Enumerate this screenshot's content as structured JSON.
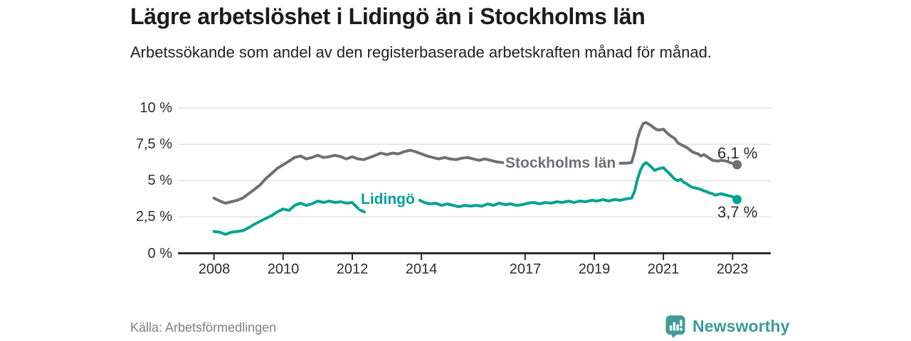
{
  "header": {
    "title": "Lägre arbetslöshet i Lidingö än i Stockholms län",
    "subtitle": "Arbetssökande som andel av den registerbaserade arbetskraften månad för månad."
  },
  "chart_data": {
    "type": "line",
    "unit": "%",
    "grid": true,
    "x_axis": {
      "ticks": [
        2008,
        2010,
        2012,
        2014,
        2017,
        2019,
        2021,
        2023
      ],
      "min": 2008,
      "max": 2023.17
    },
    "y_axis": {
      "tick_values": [
        0,
        2.5,
        5,
        7.5,
        10
      ],
      "tick_labels": [
        "0 %",
        "2,5 %",
        "5 %",
        "7,5 %",
        "10 %"
      ],
      "min": 0,
      "max": 10
    },
    "series": [
      {
        "name": "Stockholms län",
        "color": "#6f6f77",
        "end_label": "6,1 %",
        "end_value": 6.1,
        "label_gap": [
          2016.55,
          2019.7
        ],
        "points": [
          [
            2008.0,
            3.8
          ],
          [
            2008.17,
            3.6
          ],
          [
            2008.33,
            3.45
          ],
          [
            2008.5,
            3.55
          ],
          [
            2008.67,
            3.65
          ],
          [
            2008.83,
            3.8
          ],
          [
            2009.0,
            4.1
          ],
          [
            2009.17,
            4.4
          ],
          [
            2009.33,
            4.7
          ],
          [
            2009.5,
            5.15
          ],
          [
            2009.67,
            5.5
          ],
          [
            2009.83,
            5.85
          ],
          [
            2010.0,
            6.1
          ],
          [
            2010.17,
            6.35
          ],
          [
            2010.33,
            6.6
          ],
          [
            2010.5,
            6.7
          ],
          [
            2010.67,
            6.5
          ],
          [
            2010.83,
            6.6
          ],
          [
            2011.0,
            6.75
          ],
          [
            2011.17,
            6.6
          ],
          [
            2011.33,
            6.65
          ],
          [
            2011.5,
            6.75
          ],
          [
            2011.67,
            6.65
          ],
          [
            2011.83,
            6.5
          ],
          [
            2012.0,
            6.65
          ],
          [
            2012.17,
            6.5
          ],
          [
            2012.33,
            6.45
          ],
          [
            2012.5,
            6.6
          ],
          [
            2012.67,
            6.75
          ],
          [
            2012.83,
            6.9
          ],
          [
            2013.0,
            6.8
          ],
          [
            2013.17,
            6.9
          ],
          [
            2013.33,
            6.85
          ],
          [
            2013.5,
            7.0
          ],
          [
            2013.67,
            7.1
          ],
          [
            2013.83,
            7.0
          ],
          [
            2014.0,
            6.85
          ],
          [
            2014.17,
            6.7
          ],
          [
            2014.33,
            6.6
          ],
          [
            2014.5,
            6.5
          ],
          [
            2014.67,
            6.6
          ],
          [
            2014.83,
            6.5
          ],
          [
            2015.0,
            6.45
          ],
          [
            2015.17,
            6.55
          ],
          [
            2015.33,
            6.6
          ],
          [
            2015.5,
            6.5
          ],
          [
            2015.67,
            6.4
          ],
          [
            2015.83,
            6.5
          ],
          [
            2016.0,
            6.4
          ],
          [
            2016.17,
            6.3
          ],
          [
            2016.33,
            6.25
          ],
          [
            2016.5,
            6.2
          ],
          [
            2017.0,
            6.2
          ],
          [
            2017.5,
            6.25
          ],
          [
            2018.0,
            6.15
          ],
          [
            2018.5,
            6.1
          ],
          [
            2019.0,
            6.05
          ],
          [
            2019.33,
            6.1
          ],
          [
            2019.58,
            6.15
          ],
          [
            2019.75,
            6.2
          ],
          [
            2019.92,
            6.2
          ],
          [
            2020.08,
            6.25
          ],
          [
            2020.17,
            7.0
          ],
          [
            2020.25,
            7.9
          ],
          [
            2020.33,
            8.5
          ],
          [
            2020.42,
            8.95
          ],
          [
            2020.5,
            9.0
          ],
          [
            2020.58,
            8.9
          ],
          [
            2020.67,
            8.75
          ],
          [
            2020.75,
            8.6
          ],
          [
            2020.83,
            8.5
          ],
          [
            2020.92,
            8.5
          ],
          [
            2021.0,
            8.55
          ],
          [
            2021.08,
            8.35
          ],
          [
            2021.17,
            8.15
          ],
          [
            2021.33,
            7.9
          ],
          [
            2021.42,
            7.6
          ],
          [
            2021.58,
            7.4
          ],
          [
            2021.67,
            7.3
          ],
          [
            2021.83,
            7.0
          ],
          [
            2021.92,
            6.9
          ],
          [
            2022.0,
            6.85
          ],
          [
            2022.08,
            6.7
          ],
          [
            2022.17,
            6.8
          ],
          [
            2022.33,
            6.55
          ],
          [
            2022.42,
            6.4
          ],
          [
            2022.58,
            6.35
          ],
          [
            2022.67,
            6.4
          ],
          [
            2022.83,
            6.35
          ],
          [
            2022.92,
            6.25
          ],
          [
            2023.0,
            6.2
          ],
          [
            2023.13,
            6.1
          ]
        ]
      },
      {
        "name": "Lidingö",
        "color": "#00a294",
        "end_label": "3,7 %",
        "end_value": 3.7,
        "label_gap": [
          2012.4,
          2013.9
        ],
        "points": [
          [
            2008.0,
            1.5
          ],
          [
            2008.17,
            1.45
          ],
          [
            2008.33,
            1.3
          ],
          [
            2008.5,
            1.45
          ],
          [
            2008.67,
            1.5
          ],
          [
            2008.83,
            1.55
          ],
          [
            2009.0,
            1.75
          ],
          [
            2009.17,
            2.0
          ],
          [
            2009.33,
            2.2
          ],
          [
            2009.5,
            2.4
          ],
          [
            2009.67,
            2.6
          ],
          [
            2009.83,
            2.85
          ],
          [
            2010.0,
            3.05
          ],
          [
            2010.17,
            2.95
          ],
          [
            2010.33,
            3.3
          ],
          [
            2010.5,
            3.45
          ],
          [
            2010.67,
            3.3
          ],
          [
            2010.83,
            3.4
          ],
          [
            2011.0,
            3.6
          ],
          [
            2011.17,
            3.5
          ],
          [
            2011.33,
            3.6
          ],
          [
            2011.5,
            3.5
          ],
          [
            2011.67,
            3.55
          ],
          [
            2011.83,
            3.45
          ],
          [
            2012.0,
            3.5
          ],
          [
            2012.08,
            3.3
          ],
          [
            2012.17,
            3.1
          ],
          [
            2012.25,
            2.95
          ],
          [
            2012.35,
            2.85
          ],
          [
            2013.95,
            3.65
          ],
          [
            2014.08,
            3.5
          ],
          [
            2014.25,
            3.4
          ],
          [
            2014.42,
            3.45
          ],
          [
            2014.58,
            3.3
          ],
          [
            2014.75,
            3.4
          ],
          [
            2014.92,
            3.3
          ],
          [
            2015.08,
            3.2
          ],
          [
            2015.25,
            3.3
          ],
          [
            2015.42,
            3.25
          ],
          [
            2015.58,
            3.3
          ],
          [
            2015.75,
            3.25
          ],
          [
            2015.92,
            3.4
          ],
          [
            2016.08,
            3.3
          ],
          [
            2016.25,
            3.45
          ],
          [
            2016.42,
            3.35
          ],
          [
            2016.58,
            3.4
          ],
          [
            2016.75,
            3.3
          ],
          [
            2016.92,
            3.35
          ],
          [
            2017.08,
            3.45
          ],
          [
            2017.25,
            3.5
          ],
          [
            2017.42,
            3.4
          ],
          [
            2017.58,
            3.5
          ],
          [
            2017.75,
            3.45
          ],
          [
            2017.92,
            3.55
          ],
          [
            2018.08,
            3.5
          ],
          [
            2018.25,
            3.6
          ],
          [
            2018.42,
            3.5
          ],
          [
            2018.58,
            3.6
          ],
          [
            2018.75,
            3.55
          ],
          [
            2018.92,
            3.65
          ],
          [
            2019.08,
            3.6
          ],
          [
            2019.25,
            3.7
          ],
          [
            2019.42,
            3.6
          ],
          [
            2019.58,
            3.7
          ],
          [
            2019.75,
            3.65
          ],
          [
            2019.92,
            3.75
          ],
          [
            2020.08,
            3.8
          ],
          [
            2020.17,
            4.3
          ],
          [
            2020.25,
            5.1
          ],
          [
            2020.33,
            5.7
          ],
          [
            2020.42,
            6.1
          ],
          [
            2020.5,
            6.25
          ],
          [
            2020.58,
            6.1
          ],
          [
            2020.67,
            5.9
          ],
          [
            2020.75,
            5.7
          ],
          [
            2020.83,
            5.8
          ],
          [
            2020.92,
            5.85
          ],
          [
            2021.0,
            5.9
          ],
          [
            2021.08,
            5.7
          ],
          [
            2021.17,
            5.5
          ],
          [
            2021.25,
            5.3
          ],
          [
            2021.33,
            5.1
          ],
          [
            2021.42,
            5.0
          ],
          [
            2021.5,
            5.1
          ],
          [
            2021.58,
            4.9
          ],
          [
            2021.67,
            4.8
          ],
          [
            2021.75,
            4.65
          ],
          [
            2021.83,
            4.55
          ],
          [
            2021.92,
            4.5
          ],
          [
            2022.0,
            4.45
          ],
          [
            2022.08,
            4.4
          ],
          [
            2022.17,
            4.3
          ],
          [
            2022.25,
            4.25
          ],
          [
            2022.33,
            4.15
          ],
          [
            2022.42,
            4.1
          ],
          [
            2022.5,
            4.0
          ],
          [
            2022.58,
            4.05
          ],
          [
            2022.67,
            4.1
          ],
          [
            2022.75,
            4.05
          ],
          [
            2022.83,
            4.0
          ],
          [
            2022.92,
            3.95
          ],
          [
            2023.0,
            3.9
          ],
          [
            2023.13,
            3.7
          ]
        ]
      }
    ],
    "colors": {
      "axis": "#2e2e2e",
      "grid": "#e3e3e3",
      "tick_text": "#2d2d2d"
    }
  },
  "footer": {
    "source": "Källa: Arbetsförmedlingen",
    "brand": "Newsworthy",
    "brand_color": "#3f9c98",
    "brand_icon": "bar-chart-speech-bubble-icon"
  }
}
